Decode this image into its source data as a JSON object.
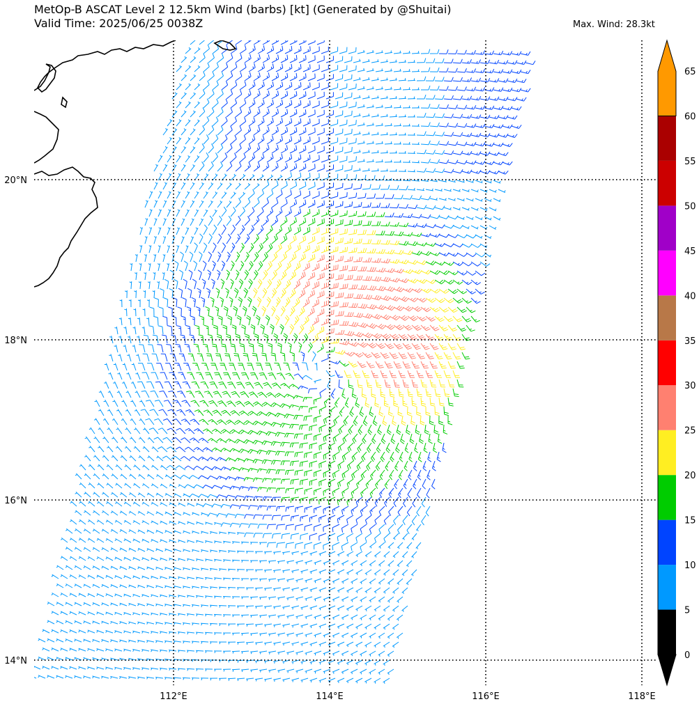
{
  "title": {
    "line1": "MetOp-B ASCAT Level 2 12.5km Wind (barbs) [kt] (Generated by @Shuitai)",
    "line2": "Valid Time: 2025/06/25 0038Z",
    "max_wind": "Max. Wind: 28.3kt"
  },
  "map": {
    "lat_labels": [
      "20°N",
      "18°N",
      "16°N",
      "14°N"
    ],
    "lon_labels": [
      "112°E",
      "114°E",
      "116°E",
      "118°E"
    ],
    "lat_values": [
      20,
      18,
      16,
      14
    ],
    "lon_values": [
      112,
      114,
      116,
      118
    ],
    "lon_range": [
      110.2,
      118.2
    ],
    "lat_range": [
      13.7,
      21.7
    ],
    "storm_center": {
      "lon": 113.9,
      "lat": 17.6
    }
  },
  "colorbar": {
    "ticks": [
      "0",
      "5",
      "10",
      "15",
      "20",
      "25",
      "30",
      "35",
      "40",
      "45",
      "50",
      "55",
      "60",
      "65"
    ],
    "levels": [
      0,
      5,
      10,
      15,
      20,
      25,
      30,
      35,
      40,
      45,
      50,
      55,
      60,
      65
    ],
    "colors": [
      "#000000",
      "#0099ff",
      "#0044ff",
      "#00cc00",
      "#ffee22",
      "#ff8070",
      "#ff0000",
      "#b87848",
      "#ff00ff",
      "#a000c8",
      "#cc0000",
      "#aa0000",
      "#ff9900"
    ],
    "max_kt": 28.3
  }
}
